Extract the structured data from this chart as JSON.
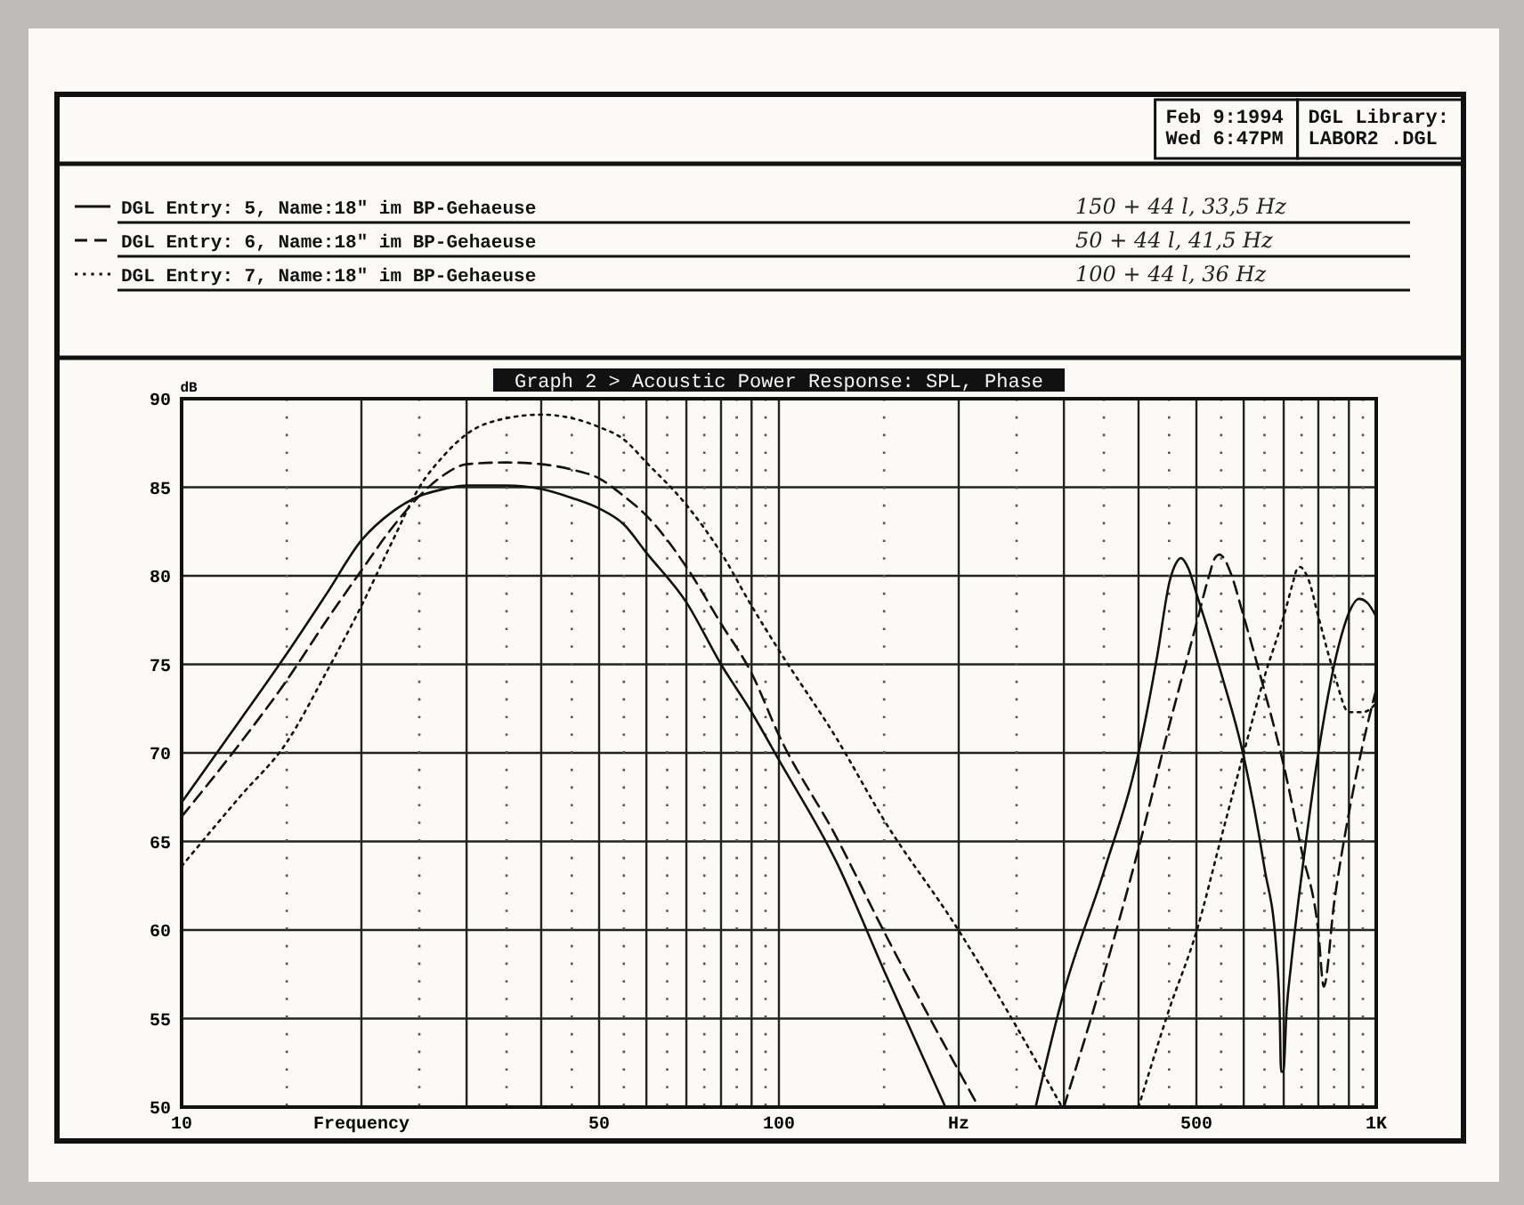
{
  "chart_data": {
    "type": "line",
    "title": "Graph 2 > Acoustic Power Response: SPL, Phase",
    "ylabel": "dB",
    "log": "x",
    "xlim": [
      10,
      1000
    ],
    "ylim": [
      50,
      90
    ],
    "xticks": [
      10,
      {
        "value": 20,
        "label": "Frequency"
      },
      {
        "value": 30,
        "label": null
      },
      {
        "value": 40,
        "label": null
      },
      50,
      {
        "value": 60,
        "label": null
      },
      {
        "value": 70,
        "label": null
      },
      {
        "value": 80,
        "label": null
      },
      {
        "value": 90,
        "label": null
      },
      100,
      {
        "value": 200,
        "label": "Hz"
      },
      {
        "value": 300,
        "label": null
      },
      {
        "value": 400,
        "label": null
      },
      500,
      {
        "value": 600,
        "label": null
      },
      {
        "value": 700,
        "label": null
      },
      {
        "value": 800,
        "label": null
      },
      {
        "value": 900,
        "label": null
      },
      {
        "value": 1000,
        "label": "1K"
      }
    ],
    "yticks": [
      50,
      55,
      60,
      65,
      70,
      75,
      80,
      85,
      90
    ],
    "grid": true,
    "legend": "top",
    "series": [
      {
        "name": "DGL Entry: 5, Name:18\" im BP-Gehaeuse",
        "color": "#111111",
        "line_style": "solid",
        "x": [
          10,
          12.5,
          15,
          17.5,
          20,
          22.5,
          25,
          27.5,
          30,
          35,
          40,
          45,
          50,
          55,
          60,
          70,
          80,
          90,
          100,
          125,
          150,
          190,
          230,
          269,
          300,
          350,
          400,
          430,
          451,
          462,
          471,
          485,
          500,
          550,
          600,
          650,
          680,
          689,
          693,
          699,
          708,
          720,
          760,
          800,
          874,
          905,
          936,
          965,
          1000
        ],
        "values": [
          67.2,
          71.8,
          75.6,
          79,
          82,
          83.6,
          84.5,
          84.9,
          85.1,
          85.1,
          84.9,
          84.4,
          83.8,
          82.9,
          81.3,
          78.5,
          75,
          72.3,
          69.6,
          63.8,
          57.7,
          50,
          null,
          50,
          56.5,
          63.3,
          70,
          75.5,
          79.7,
          80.7,
          81,
          80.4,
          79,
          74.5,
          69.8,
          63.5,
          59,
          55.5,
          52,
          52,
          55.5,
          58,
          64.6,
          70,
          76.6,
          78.1,
          78.7,
          78.5,
          77.7
        ]
      },
      {
        "name": "DGL Entry: 6, Name:18\" im BP-Gehaeuse",
        "color": "#111111",
        "line_style": "dashed",
        "x": [
          10,
          12.5,
          15,
          17.5,
          20,
          22.5,
          25,
          27.5,
          30,
          35,
          40,
          45,
          50,
          55,
          60,
          70,
          80,
          90,
          100,
          125,
          150,
          216,
          260,
          300,
          350,
          400,
          450,
          500,
          525,
          537,
          547,
          558,
          570,
          600,
          650,
          700,
          750,
          800,
          817,
          850,
          900,
          950,
          1000
        ],
        "values": [
          66.4,
          70.5,
          74.1,
          77.5,
          80.3,
          82.7,
          84.5,
          85.7,
          86.3,
          86.4,
          86.3,
          86,
          85.5,
          84.5,
          83.4,
          80.5,
          77.3,
          74.5,
          71,
          65.2,
          59.9,
          50,
          null,
          50,
          57.5,
          64.6,
          71.5,
          77.3,
          80,
          81,
          81.2,
          80.9,
          80.2,
          77.7,
          73.5,
          69.3,
          64.5,
          59.9,
          56.8,
          61.5,
          66.6,
          70.5,
          73.6
        ]
      },
      {
        "name": "DGL Entry: 7, Name:18\" im BP-Gehaeuse",
        "color": "#111111",
        "line_style": "dotted",
        "x": [
          10,
          12.5,
          15,
          17.5,
          20,
          22.5,
          25,
          27.5,
          30,
          35,
          40,
          45,
          50,
          55,
          60,
          70,
          80,
          90,
          100,
          125,
          150,
          198,
          298,
          350,
          400,
          450,
          500,
          550,
          600,
          650,
          700,
          725,
          735,
          745,
          757,
          770,
          800,
          850,
          900,
          950,
          1000
        ],
        "values": [
          63.6,
          67.5,
          70.6,
          74.6,
          78.3,
          81.9,
          85,
          86.8,
          88,
          88.9,
          89.1,
          88.9,
          88.4,
          87.7,
          86.4,
          84,
          81.3,
          78.3,
          75.8,
          70.8,
          66.2,
          60.2,
          50,
          null,
          50,
          55.5,
          59.9,
          65.2,
          70,
          74.3,
          77.7,
          79.6,
          80.3,
          80.5,
          80.3,
          79.8,
          77.7,
          74.5,
          72.3,
          72.3,
          72.8
        ]
      }
    ],
    "annotations": [
      "Feb 9:1994",
      "Wed 6:47PM",
      "DGL Library:",
      "LABOR2 .DGL",
      "150 + 44 l, 33,5 Hz",
      "50 + 44 l, 41,5 Hz",
      "100 + 44 l, 36 Hz"
    ]
  }
}
